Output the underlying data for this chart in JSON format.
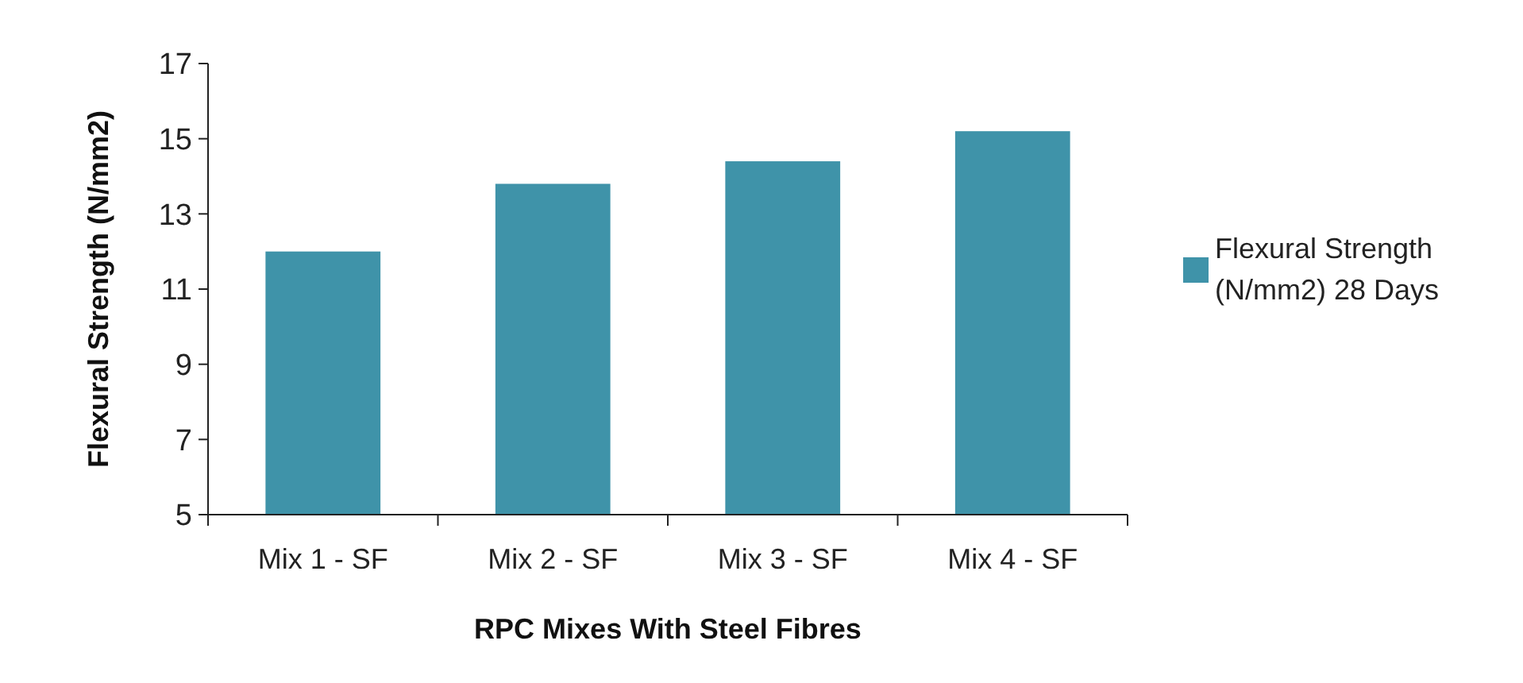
{
  "chart_data": {
    "type": "bar",
    "xlabel": "RPC Mixes With Steel Fibres",
    "ylabel": "Flexural Strength (N/mm2)",
    "categories": [
      "Mix 1 - SF",
      "Mix 2 - SF",
      "Mix 3 - SF",
      "Mix 4 - SF"
    ],
    "series": [
      {
        "name": "Flexural Strength (N/mm2) 28 Days",
        "color": "#3f93a9",
        "values": [
          12.0,
          13.8,
          14.4,
          15.2
        ]
      }
    ],
    "ylim": [
      5,
      17
    ],
    "yticks": [
      5,
      7,
      9,
      11,
      13,
      15,
      17
    ],
    "legend": "right"
  }
}
